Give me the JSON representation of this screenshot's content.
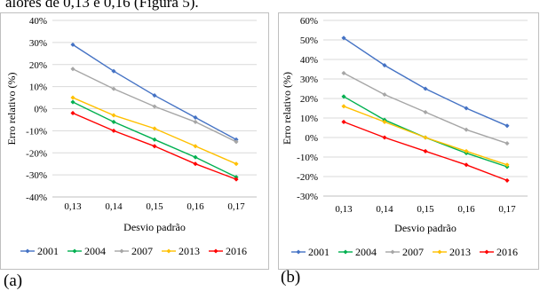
{
  "top_text": "alores de 0,13 e 0,16 (Figura 5).",
  "panels": [
    {
      "label": "(a)",
      "xlabel": "Desvio padrão",
      "ylabel": "Erro relativo (%)",
      "y_tick_labels": [
        "40%",
        "30%",
        "20%",
        "10%",
        "0%",
        "-10%",
        "-20%",
        "-30%",
        "-40%"
      ],
      "x_tick_labels": [
        "0,13",
        "0,14",
        "0,15",
        "0,16",
        "0,17"
      ]
    },
    {
      "label": "(b)",
      "xlabel": "Desvio padrão",
      "ylabel": "Erro relativo (%)",
      "y_tick_labels": [
        "60%",
        "50%",
        "40%",
        "30%",
        "20%",
        "10%",
        "0%",
        "-10%",
        "-20%",
        "-30%"
      ],
      "x_tick_labels": [
        "0,13",
        "0,14",
        "0,15",
        "0,16",
        "0,17"
      ]
    }
  ],
  "colors": {
    "2001": "#4472c4",
    "2004": "#00b050",
    "2007": "#a6a6a6",
    "2013": "#ffc000",
    "2016": "#ff0000"
  },
  "chart_data": [
    {
      "type": "line",
      "title": "",
      "xlabel": "Desvio padrão",
      "ylabel": "Erro relativo (%)",
      "categories": [
        "0,13",
        "0,14",
        "0,15",
        "0,16",
        "0,17"
      ],
      "x": [
        0.13,
        0.14,
        0.15,
        0.16,
        0.17
      ],
      "ylim": [
        -40,
        40
      ],
      "y_unit": "%",
      "grid": true,
      "legend_position": "bottom",
      "series": [
        {
          "name": "2001",
          "color": "#4472c4",
          "values": [
            29,
            17,
            6,
            -4,
            -14
          ]
        },
        {
          "name": "2004",
          "color": "#00b050",
          "values": [
            3,
            -6,
            -14,
            -22,
            -31
          ]
        },
        {
          "name": "2007",
          "color": "#a6a6a6",
          "values": [
            18,
            9,
            1,
            -6,
            -15
          ]
        },
        {
          "name": "2013",
          "color": "#ffc000",
          "values": [
            5,
            -3,
            -9,
            -17,
            -25
          ]
        },
        {
          "name": "2016",
          "color": "#ff0000",
          "values": [
            -2,
            -10,
            -17,
            -25,
            -32
          ]
        }
      ]
    },
    {
      "type": "line",
      "title": "",
      "xlabel": "Desvio padrão",
      "ylabel": "Erro relativo (%)",
      "categories": [
        "0,13",
        "0,14",
        "0,15",
        "0,16",
        "0,17"
      ],
      "x": [
        0.13,
        0.14,
        0.15,
        0.16,
        0.17
      ],
      "ylim": [
        -30,
        60
      ],
      "y_unit": "%",
      "grid": true,
      "legend_position": "bottom",
      "series": [
        {
          "name": "2001",
          "color": "#4472c4",
          "values": [
            51,
            37,
            25,
            15,
            6
          ]
        },
        {
          "name": "2004",
          "color": "#00b050",
          "values": [
            21,
            9,
            0,
            -8,
            -15
          ]
        },
        {
          "name": "2007",
          "color": "#a6a6a6",
          "values": [
            33,
            22,
            13,
            4,
            -3
          ]
        },
        {
          "name": "2013",
          "color": "#ffc000",
          "values": [
            16,
            8,
            0,
            -7,
            -14
          ]
        },
        {
          "name": "2016",
          "color": "#ff0000",
          "values": [
            8,
            0,
            -7,
            -14,
            -22
          ]
        }
      ]
    }
  ]
}
